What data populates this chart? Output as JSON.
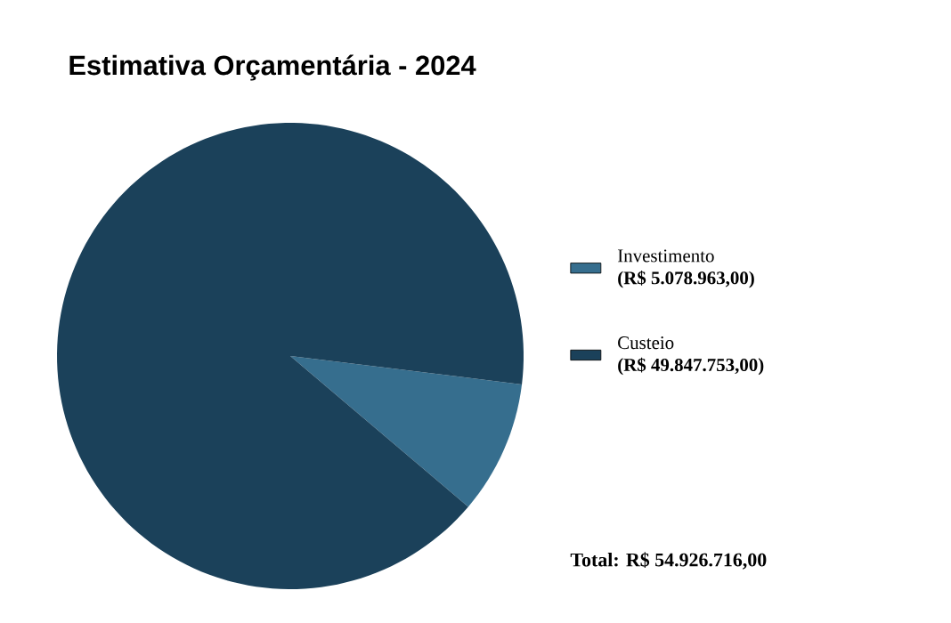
{
  "chart_data": {
    "type": "pie",
    "title": "Estimativa Orçamentária - 2024",
    "categories": [
      "Investimento",
      "Custeio"
    ],
    "values": [
      5078963,
      49847753
    ],
    "value_labels": [
      "(R$ 5.078.963,00)",
      "(R$ 49.847.753,00)"
    ],
    "colors": [
      "#366e8e",
      "#1b415a"
    ],
    "legend": "right",
    "annotations": [
      "Total: R$ 54.926.716,00"
    ]
  }
}
